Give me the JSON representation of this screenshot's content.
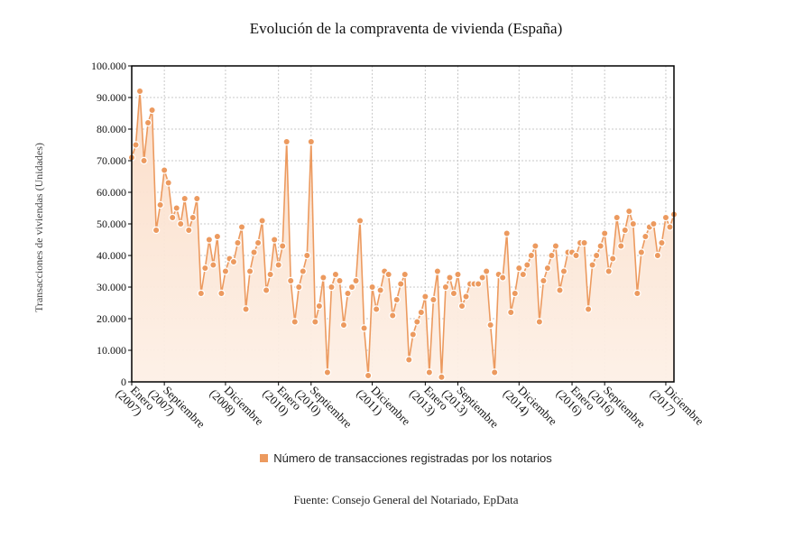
{
  "title": "Evolución de la compraventa de vivienda (España)",
  "source": "Fuente: Consejo General del Notariado, EpData",
  "chart_data": {
    "type": "line",
    "title": "Evolución de la compraventa de vivienda (España)",
    "ylabel": "Transacciones de viviendas (Unidades)",
    "xlabel": "",
    "ylim": [
      0,
      100000
    ],
    "yticks": [
      "0",
      "10.000",
      "20.000",
      "30.000",
      "40.000",
      "50.000",
      "60.000",
      "70.000",
      "80.000",
      "90.000",
      "100.000"
    ],
    "grid": true,
    "legend_position": "bottom",
    "x_tick_labels": [
      {
        "index": 0,
        "month": "Enero",
        "year": "(2007)"
      },
      {
        "index": 8,
        "month": "Septiembre",
        "year": "(2007)"
      },
      {
        "index": 23,
        "month": "Diciembre",
        "year": "(2008)"
      },
      {
        "index": 36,
        "month": "Enero",
        "year": "(2010)"
      },
      {
        "index": 44,
        "month": "Septiembre",
        "year": "(2010)"
      },
      {
        "index": 59,
        "month": "Diciembre",
        "year": "(2011)"
      },
      {
        "index": 72,
        "month": "Enero",
        "year": "(2013)"
      },
      {
        "index": 80,
        "month": "Septiembre",
        "year": "(2013)"
      },
      {
        "index": 95,
        "month": "Diciembre",
        "year": "(2014)"
      },
      {
        "index": 108,
        "month": "Enero",
        "year": "(2016)"
      },
      {
        "index": 116,
        "month": "Septiembre",
        "year": "(2016)"
      },
      {
        "index": 131,
        "month": "Diciembre",
        "year": "(2017)"
      }
    ],
    "series": [
      {
        "name": "Número de transacciones registradas por los notarios",
        "color": "#ec9a5f",
        "values": [
          71000,
          75000,
          92000,
          70000,
          82000,
          86000,
          48000,
          56000,
          67000,
          63000,
          52000,
          55000,
          50000,
          58000,
          48000,
          52000,
          58000,
          28000,
          36000,
          45000,
          37000,
          46000,
          28000,
          35000,
          39000,
          38000,
          44000,
          49000,
          23000,
          35000,
          41000,
          44000,
          51000,
          29000,
          34000,
          45000,
          37000,
          43000,
          76000,
          32000,
          19000,
          30000,
          35000,
          40000,
          76000,
          19000,
          24000,
          33000,
          3000,
          30000,
          34000,
          32000,
          18000,
          28000,
          30000,
          32000,
          51000,
          17000,
          2000,
          30000,
          23000,
          29000,
          35000,
          34000,
          21000,
          26000,
          31000,
          34000,
          7000,
          15000,
          19000,
          22000,
          27000,
          3000,
          26000,
          35000,
          1500,
          30000,
          33000,
          28000,
          34000,
          24000,
          27000,
          31000,
          31000,
          31000,
          33000,
          35000,
          18000,
          3000,
          34000,
          33000,
          47000,
          22000,
          28000,
          36000,
          34000,
          37000,
          40000,
          43000,
          19000,
          32000,
          36000,
          40000,
          43000,
          29000,
          35000,
          41000,
          41000,
          40000,
          44000,
          44000,
          23000,
          37000,
          40000,
          43000,
          47000,
          35000,
          39000,
          52000,
          43000,
          48000,
          54000,
          50000,
          28000,
          41000,
          46000,
          49000,
          50000,
          40000,
          44000,
          52000,
          49000,
          53000
        ]
      }
    ]
  }
}
